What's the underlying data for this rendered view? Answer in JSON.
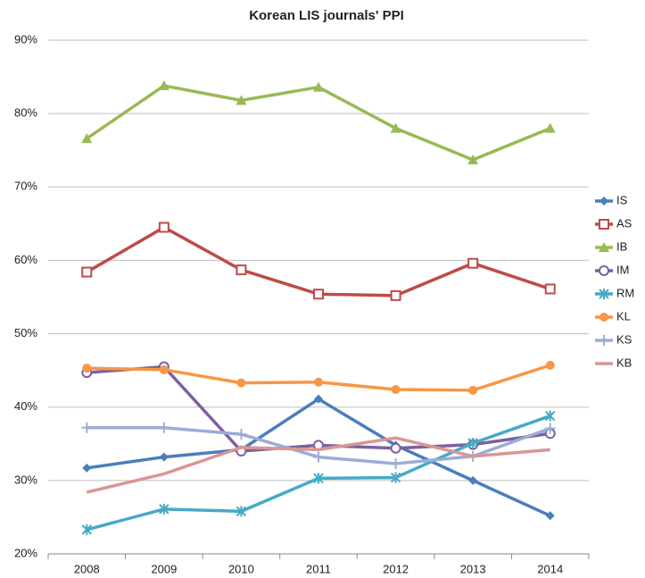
{
  "chart_data": {
    "type": "line",
    "title": "Korean LIS journals' PPI",
    "categories": [
      "2008",
      "2009",
      "2010",
      "2011",
      "2012",
      "2013",
      "2014"
    ],
    "series": [
      {
        "name": "IS",
        "color": "#4a7ebb",
        "marker": "diamond",
        "values": [
          31.7,
          33.2,
          34.2,
          41.1,
          34.8,
          30.0,
          25.2
        ]
      },
      {
        "name": "AS",
        "color": "#be4b48",
        "marker": "square",
        "values": [
          58.4,
          64.5,
          58.7,
          55.4,
          55.2,
          59.6,
          56.1
        ]
      },
      {
        "name": "IB",
        "color": "#98b954",
        "marker": "triangle",
        "values": [
          76.6,
          83.8,
          81.8,
          83.6,
          78.0,
          73.7,
          78.0
        ]
      },
      {
        "name": "IM",
        "color": "#7d60a0",
        "marker": "circle-open",
        "values": [
          44.7,
          45.5,
          34.0,
          34.8,
          34.4,
          34.9,
          36.4
        ]
      },
      {
        "name": "RM",
        "color": "#46aac5",
        "marker": "star",
        "values": [
          23.3,
          26.1,
          25.8,
          30.3,
          30.4,
          35.1,
          38.8
        ]
      },
      {
        "name": "KL",
        "color": "#f79646",
        "marker": "circle",
        "values": [
          45.3,
          45.1,
          43.3,
          43.4,
          42.4,
          42.3,
          45.7
        ]
      },
      {
        "name": "KS",
        "color": "#9bacd9",
        "marker": "plus",
        "values": [
          37.2,
          37.2,
          36.3,
          33.2,
          32.3,
          33.3,
          37.1
        ]
      },
      {
        "name": "KB",
        "color": "#d99694",
        "marker": "none",
        "values": [
          28.4,
          30.9,
          34.5,
          34.2,
          35.8,
          33.3,
          34.2
        ]
      }
    ],
    "ylim": [
      20,
      90
    ],
    "yticks": [
      {
        "value": 20,
        "label": "20%"
      },
      {
        "value": 30,
        "label": "30%"
      },
      {
        "value": 40,
        "label": "40%"
      },
      {
        "value": 50,
        "label": "50%"
      },
      {
        "value": 60,
        "label": "60%"
      },
      {
        "value": 70,
        "label": "70%"
      },
      {
        "value": 80,
        "label": "80%"
      },
      {
        "value": 90,
        "label": "90%"
      }
    ],
    "grid": true,
    "legend": "right"
  }
}
